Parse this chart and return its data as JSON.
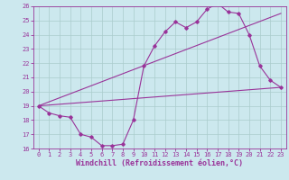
{
  "xlabel": "Windchill (Refroidissement éolien,°C)",
  "bg_color": "#cce8ee",
  "line_color": "#993399",
  "xlim": [
    -0.5,
    23.5
  ],
  "ylim": [
    16,
    26
  ],
  "xticks": [
    0,
    1,
    2,
    3,
    4,
    5,
    6,
    7,
    8,
    9,
    10,
    11,
    12,
    13,
    14,
    15,
    16,
    17,
    18,
    19,
    20,
    21,
    22,
    23
  ],
  "yticks": [
    16,
    17,
    18,
    19,
    20,
    21,
    22,
    23,
    24,
    25,
    26
  ],
  "line1_x": [
    0,
    1,
    2,
    3,
    4,
    5,
    6,
    7,
    8,
    9,
    10,
    11,
    12,
    13,
    14,
    15,
    16,
    17,
    18,
    19,
    20,
    21,
    22,
    23
  ],
  "line1_y": [
    19.0,
    18.5,
    18.3,
    18.2,
    17.0,
    16.8,
    16.2,
    16.2,
    16.3,
    18.0,
    21.8,
    23.2,
    24.2,
    24.9,
    24.5,
    24.9,
    25.8,
    26.2,
    25.6,
    25.5,
    24.0,
    21.8,
    20.8,
    20.3
  ],
  "line2_x": [
    0,
    23
  ],
  "line2_y": [
    19.0,
    25.5
  ],
  "line3_x": [
    0,
    23
  ],
  "line3_y": [
    19.0,
    20.3
  ],
  "grid_color": "#aacccc",
  "tick_fontsize": 5.0,
  "xlabel_fontsize": 6.0
}
